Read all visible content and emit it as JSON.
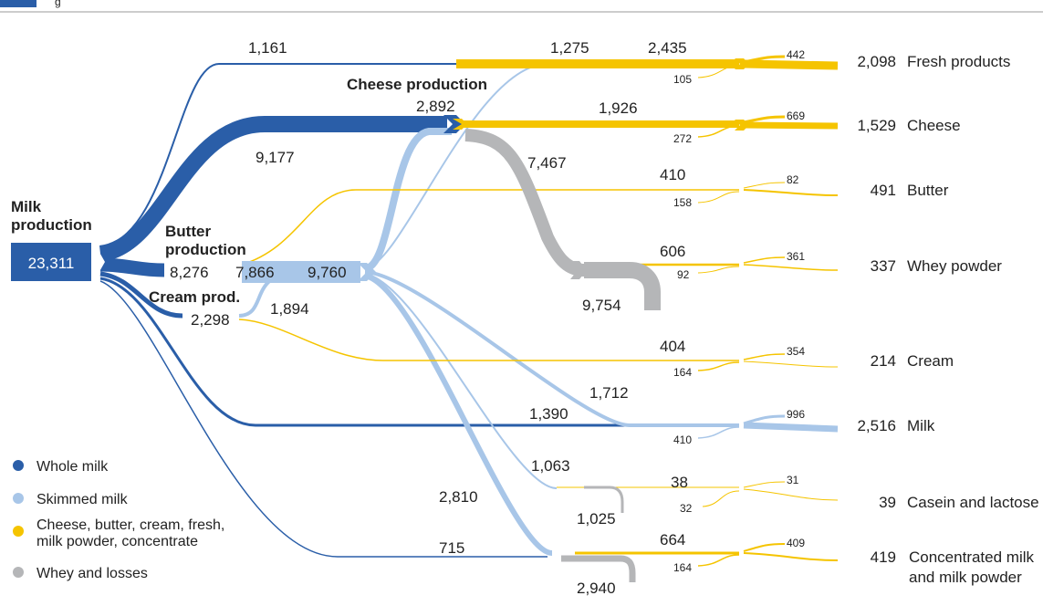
{
  "header": {
    "title_fragment": "g"
  },
  "colors": {
    "whole_milk": "#2a5ea8",
    "skimmed_milk": "#a8c6e8",
    "products": "#f5c400",
    "whey_losses": "#b5b6b8",
    "rule": "#999999"
  },
  "nodes": {
    "milk_production": {
      "label_line1": "Milk",
      "label_line2": "production",
      "value": "23,311"
    },
    "butter_production": {
      "label_line1": "Butter",
      "label_line2": "production",
      "value": "8,276",
      "skimmed_value": "7,866"
    },
    "cream_production": {
      "label": "Cream prod.",
      "value": "2,298"
    },
    "cheese_production": {
      "label": "Cheese production",
      "value": "2,892"
    },
    "skimmed_hub": {
      "value": "9,760"
    },
    "whey_pool": {
      "value": "9,754"
    },
    "casein_loss": {
      "value": "1,025"
    },
    "concentrate_loss": {
      "value": "2,940"
    }
  },
  "flow_labels": {
    "whole_to_fresh": "1,161",
    "whole_to_cheese": "9,177",
    "skimmed_to_fresh": "1,275",
    "cheese_to_fresh": "2,435",
    "fresh_small": "105",
    "cheese_out": "1,926",
    "cheese_small": "272",
    "cheese_whey": "7,467",
    "butter_out": "410",
    "butter_small": "158",
    "whey_out": "606",
    "whey_small": "92",
    "cream_out": "404",
    "cream_small": "164",
    "skimmed_to_milk": "1,712",
    "whole_to_milk": "1,390",
    "milk_small": "410",
    "skimmed_to_casein": "1,063",
    "casein_out": "38",
    "casein_small": "32",
    "skimmed_to_conc": "2,810",
    "whole_to_conc": "715",
    "conc_out": "664",
    "conc_small": "164",
    "cream_to_skimmed": "1,894"
  },
  "outputs": [
    {
      "value": "2,098",
      "name": "Fresh products",
      "side": "442"
    },
    {
      "value": "1,529",
      "name": "Cheese",
      "side": "669"
    },
    {
      "value": "491",
      "name": "Butter",
      "side": "82"
    },
    {
      "value": "337",
      "name": "Whey powder",
      "side": "361"
    },
    {
      "value": "214",
      "name": "Cream",
      "side": "354"
    },
    {
      "value": "2,516",
      "name": "Milk",
      "side": "996"
    },
    {
      "value": "39",
      "name": "Casein and lactose",
      "side": "31"
    },
    {
      "value": "419",
      "name": "Concentrated milk",
      "name2": "and milk powder",
      "side": "409"
    }
  ],
  "legend": [
    {
      "label": "Whole milk",
      "color": "#2a5ea8"
    },
    {
      "label": "Skimmed milk",
      "color": "#a8c6e8"
    },
    {
      "label": "Cheese, butter, cream, fresh,",
      "label2": "milk powder, concentrate",
      "color": "#f5c400"
    },
    {
      "label": "Whey and losses",
      "color": "#b5b6b8"
    }
  ]
}
